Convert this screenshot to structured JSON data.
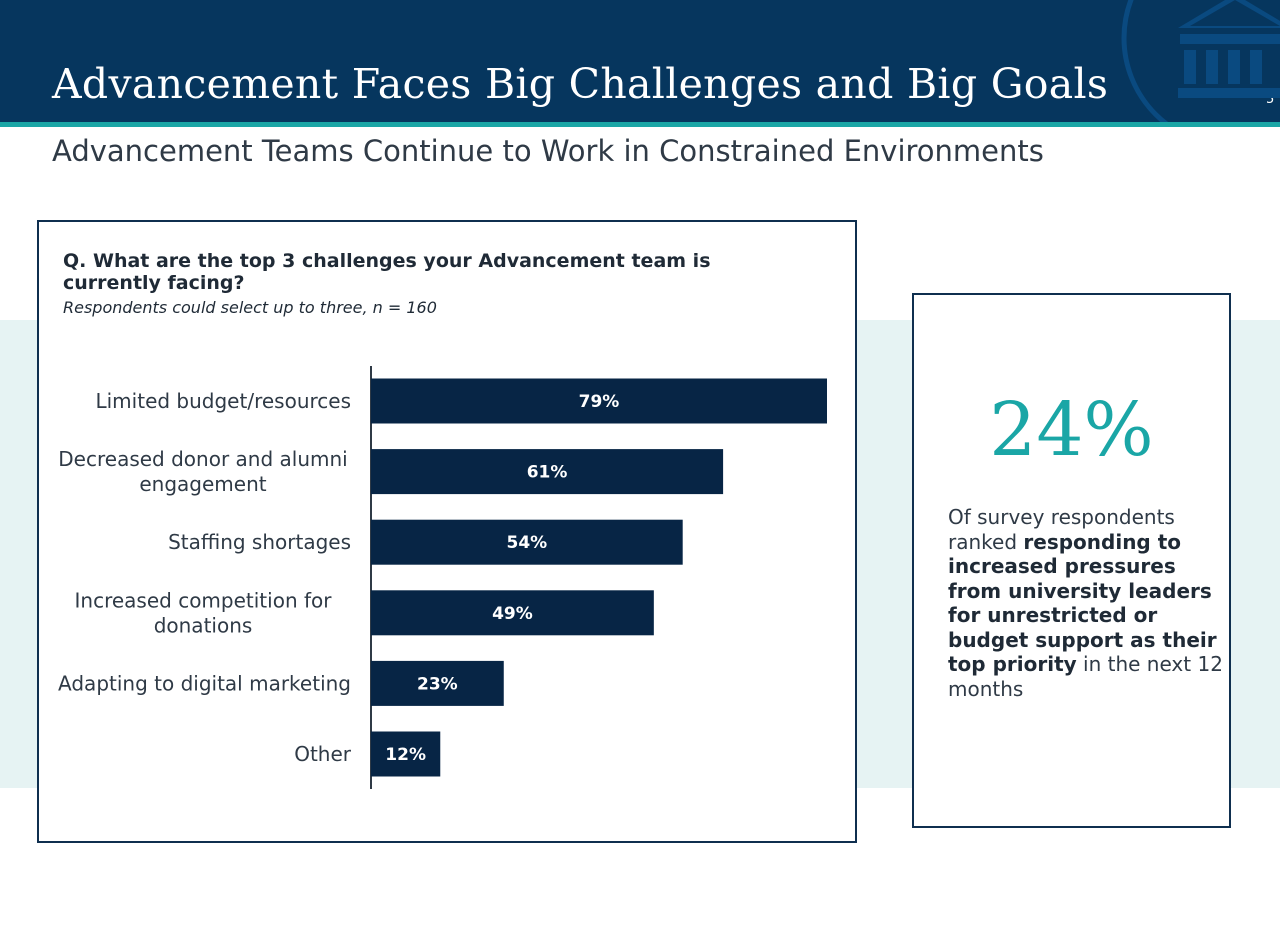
{
  "header": {
    "title": "Advancement Faces Big Challenges and Big Goals",
    "page_number": "5",
    "logo_icon": "building-columns-icon"
  },
  "subtitle": "Advancement Teams Continue to Work in Constrained Environments",
  "chart_card": {
    "question": "Q. What are the top 3 challenges your Advancement team is currently facing?",
    "note": "Respondents could select up to three, n = 160"
  },
  "chart_data": {
    "type": "bar",
    "orientation": "horizontal",
    "categories": [
      "Limited budget/resources",
      "Decreased donor and alumni engagement",
      "Staffing shortages",
      "Increased competition for donations",
      "Adapting to digital marketing",
      "Other"
    ],
    "category_lines": [
      [
        "Limited budget/resources"
      ],
      [
        "Decreased donor and alumni",
        "engagement"
      ],
      [
        "Staffing shortages"
      ],
      [
        "Increased competition for",
        "donations"
      ],
      [
        "Adapting to digital marketing"
      ],
      [
        "Other"
      ]
    ],
    "values": [
      79,
      61,
      54,
      49,
      23,
      12
    ],
    "data_labels": [
      "79%",
      "61%",
      "54%",
      "49%",
      "23%",
      "12%"
    ],
    "xlim": [
      0,
      79
    ],
    "grid": false,
    "bar_color": "#072545",
    "label_color": "#ffffff"
  },
  "stat": {
    "value": "24%",
    "text_before": "Of survey respondents ranked ",
    "text_bold": "responding to increased pressures from university leaders for unrestricted or budget support as their top priority",
    "text_after": " in the next 12 months"
  },
  "colors": {
    "navy": "#06365e",
    "teal": "#1aa6a6",
    "band": "#e6f3f3"
  }
}
